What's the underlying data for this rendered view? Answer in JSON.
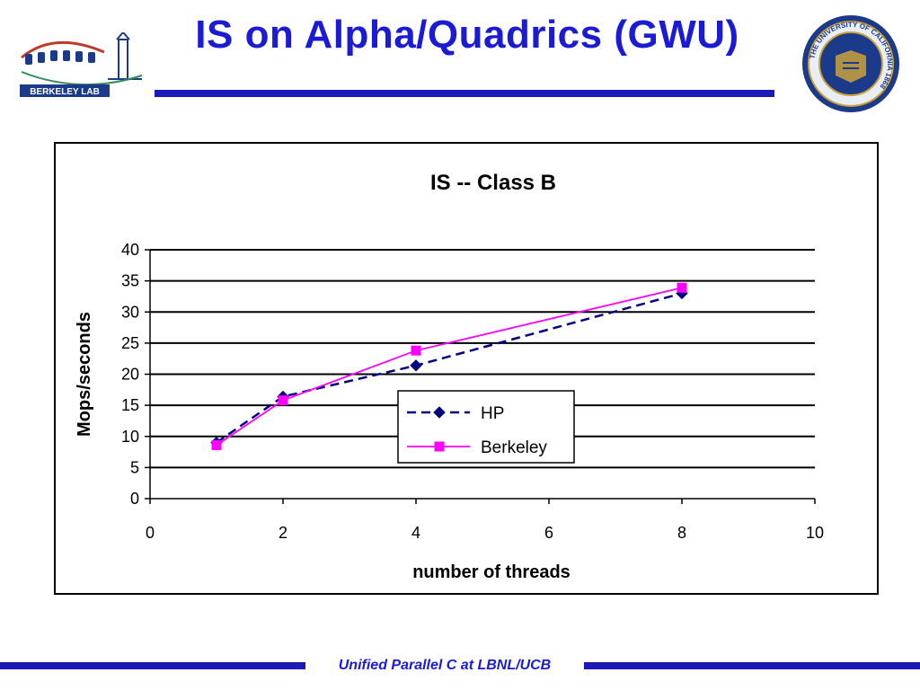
{
  "slide": {
    "title": "IS on Alpha/Quadrics (GWU)",
    "footer": "Unified Parallel C at LBNL/UCB",
    "accent_color": "#1a1ab8",
    "title_color": "#1b1bd6"
  },
  "logos": {
    "left": {
      "icon": "berkeley-lab-logo",
      "text": "BERKELEY LAB"
    },
    "right": {
      "icon": "university-of-california-seal",
      "text": "THE UNIVERSITY OF CALIFORNIA 1868"
    }
  },
  "chart_data": {
    "type": "line",
    "title": "IS -- Class B",
    "xlabel": "number of threads",
    "ylabel": "Mops/seconds",
    "xlim": [
      0,
      10
    ],
    "ylim": [
      0,
      40
    ],
    "xticks": [
      0,
      2,
      4,
      6,
      8,
      10
    ],
    "yticks": [
      0,
      5,
      10,
      15,
      20,
      25,
      30,
      35,
      40
    ],
    "grid": "horizontal",
    "legend_position": "center-right",
    "series": [
      {
        "name": "HP",
        "color": "#000080",
        "line_style": "dashed",
        "marker": "diamond",
        "x": [
          1,
          2,
          4,
          8
        ],
        "y": [
          9.0,
          16.4,
          21.4,
          33.0
        ]
      },
      {
        "name": "Berkeley",
        "color": "#ff00ff",
        "line_style": "solid",
        "marker": "square",
        "x": [
          1,
          2,
          4,
          8
        ],
        "y": [
          8.6,
          15.8,
          23.8,
          33.9
        ]
      }
    ]
  }
}
